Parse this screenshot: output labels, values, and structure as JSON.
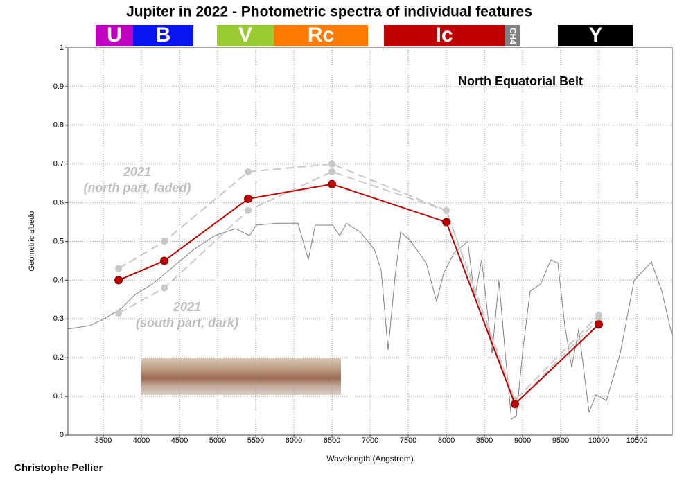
{
  "chart_data": {
    "type": "line",
    "title": "Jupiter in 2022 - Photometric spectra of individual features",
    "filters": [
      {
        "label": "U",
        "color": "#c000c0"
      },
      {
        "label": "B",
        "color": "#0a14f0"
      },
      {
        "label": "V",
        "color": "#99cc33"
      },
      {
        "label": "Rc",
        "color": "#ff7a00"
      },
      {
        "label": "Ic",
        "color": "#c00000"
      },
      {
        "label": "CH4",
        "color": "#808080"
      },
      {
        "label": "Y",
        "color": "#000000"
      }
    ],
    "annotations": [
      "North Equatorial Belt",
      "2021",
      "(north part, faded)",
      "2021",
      "(south part, dark)"
    ],
    "credit": "Christophe Pellier",
    "xlabel": "Wavelength (Angstrom)",
    "ylabel": "Geometric albedo",
    "xlim": [
      3036,
      10963
    ],
    "ylim": [
      0,
      1
    ],
    "xticks": [
      3500,
      4000,
      4500,
      5000,
      5500,
      6000,
      6500,
      7000,
      7500,
      8000,
      8500,
      9000,
      9500,
      10000,
      10500
    ],
    "yticks": [
      0,
      0.1,
      0.2,
      0.3,
      0.4,
      0.5,
      0.6,
      0.7,
      0.8,
      0.9,
      1
    ],
    "grid": true,
    "series": [
      {
        "color": "#808080",
        "dashed": false,
        "markers": false,
        "x": [
          3036,
          3327,
          3509,
          3736,
          3918,
          4145,
          4418,
          4690,
          4963,
          5236,
          5418,
          5509,
          5781,
          6054,
          6190,
          6281,
          6509,
          6600,
          6690,
          6872,
          7054,
          7145,
          7236,
          7327,
          7400,
          7509,
          7645,
          7736,
          7872,
          7963,
          8100,
          8281,
          8372,
          8463,
          8600,
          8690,
          8781,
          8854,
          8918,
          9009,
          9100,
          9236,
          9372,
          9463,
          9554,
          9645,
          9736,
          9872,
          9963,
          10100,
          10281,
          10463,
          10690,
          10827,
          10963
        ],
        "values": [
          0.274,
          0.283,
          0.3,
          0.327,
          0.363,
          0.39,
          0.435,
          0.48,
          0.515,
          0.533,
          0.515,
          0.542,
          0.547,
          0.547,
          0.453,
          0.542,
          0.542,
          0.515,
          0.547,
          0.524,
          0.48,
          0.426,
          0.22,
          0.408,
          0.524,
          0.506,
          0.47,
          0.444,
          0.345,
          0.417,
          0.47,
          0.5,
          0.354,
          0.453,
          0.211,
          0.399,
          0.193,
          0.041,
          0.05,
          0.229,
          0.372,
          0.39,
          0.453,
          0.444,
          0.283,
          0.175,
          0.274,
          0.059,
          0.104,
          0.089,
          0.211,
          0.399,
          0.447,
          0.372,
          0.256
        ]
      },
      {
        "color": "#c8c8c8",
        "dashed": true,
        "markers": true,
        "x": [
          3700,
          4300,
          5400,
          6500,
          8000,
          8900,
          10000
        ],
        "values": [
          0.43,
          0.5,
          0.68,
          0.7,
          0.58,
          0.09,
          0.31
        ]
      },
      {
        "color": "#c8c8c8",
        "dashed": true,
        "markers": true,
        "x": [
          3700,
          4300,
          5400,
          6500,
          8000,
          8900,
          10000
        ],
        "values": [
          0.315,
          0.38,
          0.58,
          0.68,
          0.58,
          0.08,
          0.3
        ]
      },
      {
        "color": "#c00000",
        "dashed": false,
        "markers": true,
        "x": [
          3700,
          4300,
          5400,
          6500,
          8000,
          8900,
          10000
        ],
        "values": [
          0.4,
          0.45,
          0.61,
          0.648,
          0.55,
          0.08,
          0.286
        ]
      }
    ]
  }
}
